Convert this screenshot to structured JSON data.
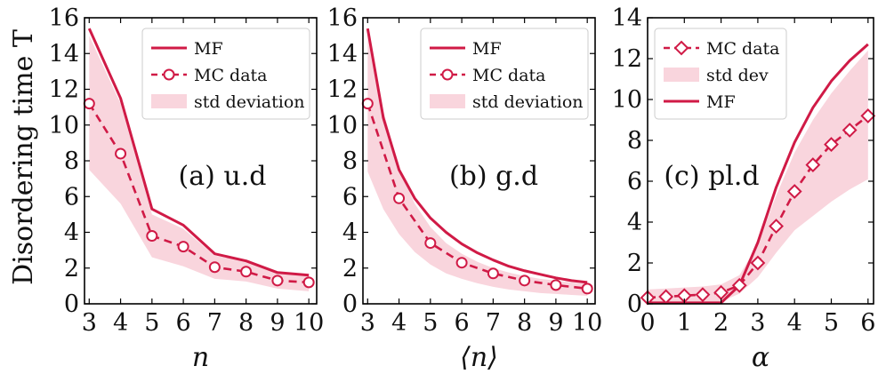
{
  "colors": {
    "line": "#d01a46",
    "band": "#f9d5dd"
  },
  "figure": {
    "ylabel": "Disordering time T"
  },
  "chart_data": [
    {
      "type": "line",
      "panel_label": "(a) u.d",
      "xlabel": "n",
      "xlim": [
        2.85,
        10.25
      ],
      "ylim": [
        0,
        16
      ],
      "xticks": [
        3,
        4,
        5,
        6,
        7,
        8,
        9,
        10
      ],
      "xtick_labels": [
        "3",
        "4",
        "5",
        "6",
        "7",
        "8",
        "9",
        "10"
      ],
      "yticks": [
        0,
        2,
        4,
        6,
        8,
        10,
        12,
        14,
        16
      ],
      "ytick_labels": [
        "0",
        "2",
        "4",
        "6",
        "8",
        "10",
        "12",
        "14",
        "16"
      ],
      "legend": {
        "position": "top-right",
        "entries": [
          "MF",
          "MC data",
          "std deviation"
        ]
      },
      "x": [
        3,
        4,
        5,
        6,
        7,
        8,
        9,
        10
      ],
      "series": [
        {
          "name": "MF",
          "kind": "line",
          "values": [
            15.4,
            11.5,
            5.3,
            4.4,
            2.8,
            2.4,
            1.75,
            1.6
          ]
        },
        {
          "name": "MC data",
          "kind": "markers",
          "marker": "circle",
          "values": [
            11.2,
            8.4,
            3.8,
            3.2,
            2.05,
            1.8,
            1.3,
            1.2
          ]
        },
        {
          "name": "std deviation",
          "kind": "band",
          "lower": [
            7.5,
            5.6,
            2.6,
            2.1,
            1.4,
            1.25,
            0.85,
            0.7
          ],
          "upper": [
            15.0,
            11.2,
            5.0,
            4.2,
            2.7,
            2.35,
            1.7,
            1.6
          ]
        }
      ]
    },
    {
      "type": "line",
      "panel_label": "(b) g.d",
      "xlabel": "⟨n⟩",
      "xlim": [
        2.85,
        10.25
      ],
      "ylim": [
        0,
        16
      ],
      "xticks": [
        3,
        4,
        5,
        6,
        7,
        8,
        9,
        10
      ],
      "xtick_labels": [
        "3",
        "4",
        "5",
        "6",
        "7",
        "8",
        "9",
        "10"
      ],
      "yticks": [
        0,
        2,
        4,
        6,
        8,
        10,
        12,
        14,
        16
      ],
      "ytick_labels": [
        "0",
        "2",
        "4",
        "6",
        "8",
        "10",
        "12",
        "14",
        "16"
      ],
      "legend": {
        "position": "top-right",
        "entries": [
          "MF",
          "MC data",
          "std deviation"
        ]
      },
      "x": [
        3,
        3.5,
        4,
        4.5,
        5,
        5.5,
        6,
        6.5,
        7,
        7.5,
        8,
        8.5,
        9,
        9.5,
        10
      ],
      "series": [
        {
          "name": "MF",
          "kind": "line",
          "values": [
            15.4,
            10.4,
            7.5,
            5.9,
            4.8,
            4.0,
            3.35,
            2.85,
            2.45,
            2.1,
            1.85,
            1.65,
            1.45,
            1.3,
            1.2
          ]
        },
        {
          "name": "MC data",
          "kind": "markers",
          "marker": "circle",
          "x": [
            3,
            4,
            5,
            6,
            7,
            8,
            9,
            10
          ],
          "values": [
            11.2,
            5.9,
            3.4,
            2.3,
            1.7,
            1.3,
            1.05,
            0.85
          ]
        },
        {
          "name": "std deviation",
          "kind": "band",
          "lower": [
            7.4,
            5.3,
            3.9,
            2.9,
            2.2,
            1.7,
            1.4,
            1.15,
            0.95,
            0.8,
            0.7,
            0.6,
            0.55,
            0.5,
            0.45
          ],
          "upper": [
            15.0,
            10.8,
            7.6,
            5.6,
            4.3,
            3.4,
            2.8,
            2.35,
            2.0,
            1.75,
            1.55,
            1.4,
            1.3,
            1.2,
            1.1
          ]
        }
      ]
    },
    {
      "type": "line",
      "panel_label": "(c) pl.d",
      "xlabel": "α",
      "xlim": [
        0,
        6.15
      ],
      "ylim": [
        0,
        14
      ],
      "xticks": [
        0,
        1,
        2,
        3,
        4,
        5,
        6
      ],
      "xtick_labels": [
        "0",
        "1",
        "2",
        "3",
        "4",
        "5",
        "6"
      ],
      "yticks": [
        0,
        2,
        4,
        6,
        8,
        10,
        12,
        14
      ],
      "ytick_labels": [
        "0",
        "2",
        "4",
        "6",
        "8",
        "10",
        "12",
        "14"
      ],
      "legend": {
        "position": "top-left",
        "entries": [
          "MC data",
          "std dev",
          "MF"
        ]
      },
      "x": [
        0,
        0.5,
        1,
        1.5,
        2,
        2.5,
        3,
        3.5,
        4,
        4.5,
        5,
        5.5,
        6
      ],
      "series": [
        {
          "name": "MC data",
          "kind": "markers",
          "marker": "diamond",
          "values": [
            0.3,
            0.35,
            0.4,
            0.45,
            0.55,
            0.9,
            2.0,
            3.8,
            5.5,
            6.8,
            7.8,
            8.5,
            9.2
          ]
        },
        {
          "name": "std dev",
          "kind": "band",
          "lower": [
            0.0,
            0.0,
            0.0,
            0.0,
            0.1,
            0.5,
            1.3,
            2.5,
            3.6,
            4.3,
            5.0,
            5.6,
            6.1
          ],
          "upper": [
            0.7,
            0.75,
            0.8,
            0.85,
            0.95,
            1.4,
            2.9,
            5.3,
            7.4,
            9.0,
            10.3,
            11.4,
            12.4
          ]
        },
        {
          "name": "MF",
          "kind": "line",
          "values": [
            0.05,
            0.05,
            0.05,
            0.05,
            0.05,
            0.9,
            3.0,
            5.7,
            7.9,
            9.6,
            10.9,
            11.9,
            12.7
          ]
        }
      ]
    }
  ]
}
